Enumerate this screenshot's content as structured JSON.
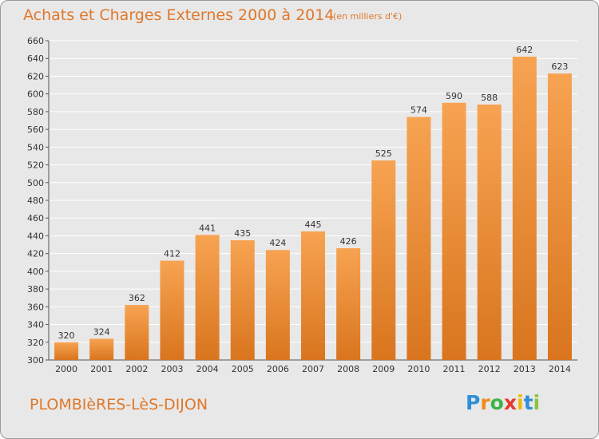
{
  "title": "Achats et Charges Externes 2000 à 2014",
  "subtitle": "(en milliers d'€)",
  "commune": "PLOMBIèRES-LèS-DIJON",
  "logo": {
    "letters": [
      "P",
      "r",
      "o",
      "x",
      "i",
      "t",
      "i"
    ],
    "colors": [
      "#2f8fd8",
      "#f08a1c",
      "#3db34a",
      "#e23a2e",
      "#f2b705",
      "#2f8fd8",
      "#8ac43f"
    ]
  },
  "colors": {
    "bar_light": "#f7a352",
    "bar_dark": "#d9751e",
    "title": "#e0782a",
    "grid": "#ffffff"
  },
  "chart_data": {
    "type": "bar",
    "categories": [
      "2000",
      "2001",
      "2002",
      "2003",
      "2004",
      "2005",
      "2006",
      "2007",
      "2008",
      "2009",
      "2010",
      "2011",
      "2012",
      "2013",
      "2014"
    ],
    "values": [
      320,
      324,
      362,
      412,
      441,
      435,
      424,
      445,
      426,
      525,
      574,
      590,
      588,
      642,
      623
    ],
    "ylim": [
      300,
      660
    ],
    "yticks": [
      300,
      320,
      340,
      360,
      380,
      400,
      420,
      440,
      460,
      480,
      500,
      520,
      540,
      560,
      580,
      600,
      620,
      640,
      660
    ],
    "grid": true,
    "xlabel": "",
    "ylabel": ""
  }
}
